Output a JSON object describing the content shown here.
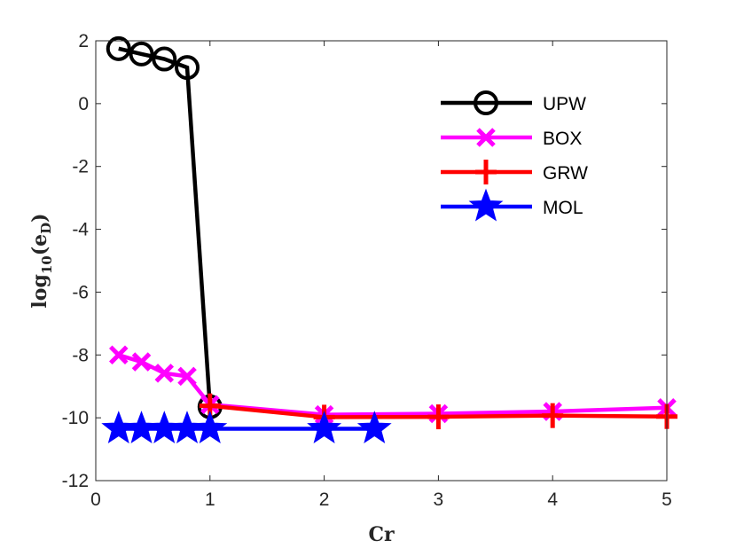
{
  "chart_data": {
    "type": "line",
    "title": "",
    "xlabel": "Cr",
    "ylabel": "log10(eD)",
    "ylabel_parts": {
      "fn": "log",
      "sub": "10",
      "open": "(",
      "var": "e",
      "varsub": "D",
      "close": ")"
    },
    "xlim": [
      0,
      5
    ],
    "ylim": [
      -12,
      2
    ],
    "xticks": [
      0,
      1,
      2,
      3,
      4,
      5
    ],
    "yticks": [
      2,
      0,
      -2,
      -4,
      -6,
      -8,
      -10,
      -12
    ],
    "xtick_labels": [
      "0",
      "1",
      "2",
      "3",
      "4",
      "5"
    ],
    "ytick_labels": [
      "2",
      "0",
      "-2",
      "-4",
      "-6",
      "-8",
      "-10",
      "-12"
    ],
    "grid": false,
    "legend_position": "top-right",
    "series": [
      {
        "name": "UPW",
        "color": "#000000",
        "marker": "circle",
        "x": [
          0.2,
          0.4,
          0.6,
          0.8,
          1.0
        ],
        "y": [
          1.75,
          1.58,
          1.42,
          1.15,
          -9.65
        ]
      },
      {
        "name": "BOX",
        "color": "#ff00ff",
        "marker": "x",
        "x": [
          0.2,
          0.4,
          0.6,
          0.8,
          1,
          2,
          3,
          4,
          5
        ],
        "y": [
          -8.0,
          -8.22,
          -8.58,
          -8.68,
          -9.58,
          -9.9,
          -9.87,
          -9.8,
          -9.68
        ]
      },
      {
        "name": "GRW",
        "color": "#ff0000",
        "marker": "plus",
        "x": [
          1,
          2,
          3,
          4,
          5
        ],
        "y": [
          -9.62,
          -9.98,
          -9.97,
          -9.93,
          -9.96
        ]
      },
      {
        "name": "MOL",
        "color": "#0000ff",
        "marker": "star",
        "x": [
          0.2,
          0.4,
          0.6,
          0.8,
          1,
          2,
          2.44
        ],
        "y": [
          -10.35,
          -10.35,
          -10.35,
          -10.35,
          -10.35,
          -10.35,
          -10.35
        ]
      }
    ]
  }
}
